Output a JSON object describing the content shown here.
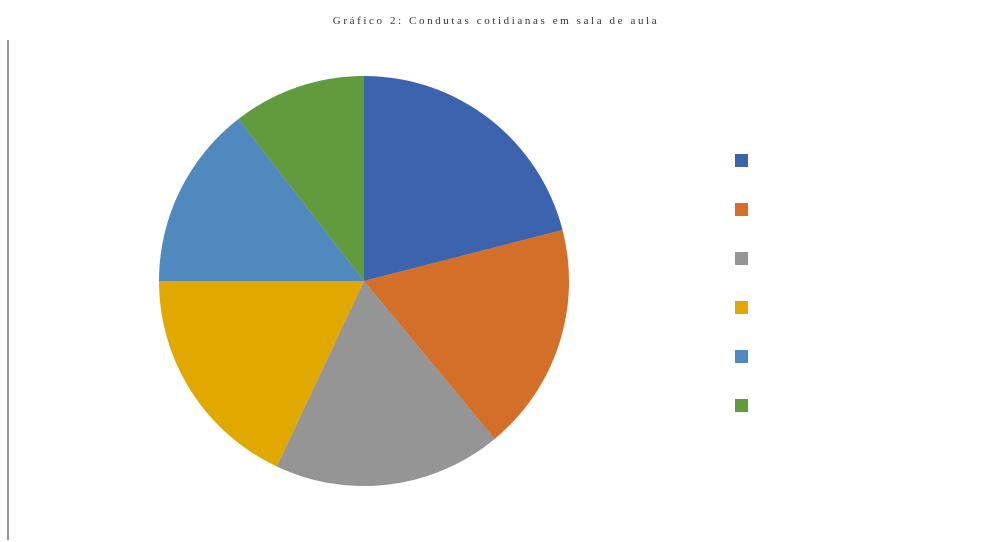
{
  "chart_data": {
    "type": "pie",
    "title": "Gráfico 2: Condutas cotidianas em sala de aula",
    "categories": [
      null,
      null,
      null,
      null,
      null,
      null
    ],
    "values": [
      21,
      18,
      18,
      18,
      14.5,
      10.5
    ],
    "colors": [
      "#3c64ae",
      "#d46f2a",
      "#959595",
      "#e1a900",
      "#4f89bd",
      "#629b3e"
    ],
    "legend": "right"
  }
}
